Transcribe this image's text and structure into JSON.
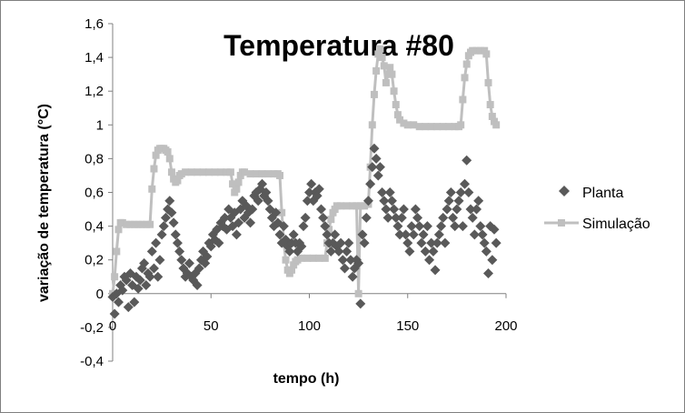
{
  "colors": {
    "planta": "#595959",
    "simulacao": "#bfbfbf",
    "axis": "#808080",
    "frame": "#7f7f7f"
  },
  "chart_data": {
    "type": "scatter",
    "title": "Temperatura #80",
    "xlabel": "tempo (h)",
    "ylabel": "variação de temperatura (°C)",
    "xlim": [
      0,
      200
    ],
    "ylim": [
      -0.4,
      1.6
    ],
    "x_ticks": [
      0,
      50,
      100,
      150,
      200
    ],
    "x_tick_labels": [
      "0",
      "50",
      "100",
      "150",
      "200"
    ],
    "y_ticks": [
      -0.4,
      -0.2,
      0,
      0.2,
      0.4,
      0.6,
      0.8,
      1.0,
      1.2,
      1.4,
      1.6
    ],
    "y_tick_labels": [
      "-0,4",
      "-0,2",
      "0",
      "0,2",
      "0,4",
      "0,6",
      "0,8",
      "1",
      "1,2",
      "1,4",
      "1,6"
    ],
    "grid": false,
    "legend_position": "right",
    "series": [
      {
        "name": "Planta",
        "marker": "diamond",
        "points": [
          [
            0,
            -0.02
          ],
          [
            1,
            -0.12
          ],
          [
            2,
            0.0
          ],
          [
            3,
            -0.05
          ],
          [
            4,
            0.05
          ],
          [
            5,
            0.02
          ],
          [
            6,
            0.1
          ],
          [
            7,
            0.08
          ],
          [
            8,
            -0.08
          ],
          [
            9,
            0.12
          ],
          [
            10,
            0.05
          ],
          [
            11,
            -0.05
          ],
          [
            12,
            0.1
          ],
          [
            13,
            0.03
          ],
          [
            14,
            0.08
          ],
          [
            15,
            0.15
          ],
          [
            16,
            0.18
          ],
          [
            17,
            0.05
          ],
          [
            18,
            0.12
          ],
          [
            19,
            0.1
          ],
          [
            20,
            0.25
          ],
          [
            21,
            0.15
          ],
          [
            22,
            0.3
          ],
          [
            23,
            0.1
          ],
          [
            24,
            0.2
          ],
          [
            25,
            0.35
          ],
          [
            26,
            0.4
          ],
          [
            27,
            0.45
          ],
          [
            28,
            0.5
          ],
          [
            29,
            0.55
          ],
          [
            30,
            0.48
          ],
          [
            31,
            0.42
          ],
          [
            32,
            0.35
          ],
          [
            33,
            0.3
          ],
          [
            34,
            0.25
          ],
          [
            35,
            0.2
          ],
          [
            36,
            0.15
          ],
          [
            37,
            0.1
          ],
          [
            38,
            0.12
          ],
          [
            39,
            0.18
          ],
          [
            40,
            0.1
          ],
          [
            41,
            0.08
          ],
          [
            42,
            0.12
          ],
          [
            43,
            0.05
          ],
          [
            44,
            0.15
          ],
          [
            45,
            0.2
          ],
          [
            46,
            0.25
          ],
          [
            47,
            0.18
          ],
          [
            48,
            0.22
          ],
          [
            49,
            0.3
          ],
          [
            50,
            0.28
          ],
          [
            51,
            0.35
          ],
          [
            52,
            0.32
          ],
          [
            53,
            0.38
          ],
          [
            54,
            0.3
          ],
          [
            55,
            0.42
          ],
          [
            56,
            0.4
          ],
          [
            57,
            0.45
          ],
          [
            58,
            0.38
          ],
          [
            59,
            0.5
          ],
          [
            60,
            0.45
          ],
          [
            61,
            0.4
          ],
          [
            62,
            0.48
          ],
          [
            63,
            0.35
          ],
          [
            64,
            0.42
          ],
          [
            65,
            0.5
          ],
          [
            66,
            0.55
          ],
          [
            67,
            0.45
          ],
          [
            68,
            0.52
          ],
          [
            69,
            0.48
          ],
          [
            70,
            0.42
          ],
          [
            71,
            0.5
          ],
          [
            72,
            0.58
          ],
          [
            73,
            0.6
          ],
          [
            74,
            0.55
          ],
          [
            75,
            0.62
          ],
          [
            76,
            0.65
          ],
          [
            77,
            0.58
          ],
          [
            78,
            0.6
          ],
          [
            79,
            0.55
          ],
          [
            80,
            0.5
          ],
          [
            81,
            0.45
          ],
          [
            82,
            0.4
          ],
          [
            83,
            0.48
          ],
          [
            84,
            0.42
          ],
          [
            85,
            0.35
          ],
          [
            86,
            0.3
          ],
          [
            87,
            0.4
          ],
          [
            88,
            0.32
          ],
          [
            89,
            0.28
          ],
          [
            90,
            0.25
          ],
          [
            91,
            0.3
          ],
          [
            92,
            0.35
          ],
          [
            93,
            0.3
          ],
          [
            94,
            0.25
          ],
          [
            95,
            0.3
          ],
          [
            96,
            0.28
          ],
          [
            97,
            0.4
          ],
          [
            98,
            0.45
          ],
          [
            99,
            0.55
          ],
          [
            100,
            0.6
          ],
          [
            101,
            0.65
          ],
          [
            102,
            0.55
          ],
          [
            103,
            0.6
          ],
          [
            104,
            0.58
          ],
          [
            105,
            0.62
          ],
          [
            106,
            0.5
          ],
          [
            107,
            0.45
          ],
          [
            108,
            0.4
          ],
          [
            109,
            0.35
          ],
          [
            110,
            0.3
          ],
          [
            111,
            0.25
          ],
          [
            112,
            0.3
          ],
          [
            113,
            0.35
          ],
          [
            114,
            0.28
          ],
          [
            115,
            0.25
          ],
          [
            116,
            0.3
          ],
          [
            117,
            0.2
          ],
          [
            118,
            0.15
          ],
          [
            119,
            0.25
          ],
          [
            120,
            0.3
          ],
          [
            121,
            0.2
          ],
          [
            122,
            0.1
          ],
          [
            123,
            0.15
          ],
          [
            124,
            0.2
          ],
          [
            125,
            0.18
          ],
          [
            126,
            -0.06
          ],
          [
            127,
            0.35
          ],
          [
            128,
            0.3
          ],
          [
            129,
            0.45
          ],
          [
            130,
            0.55
          ],
          [
            131,
            0.65
          ],
          [
            132,
            0.75
          ],
          [
            133,
            0.86
          ],
          [
            134,
            0.8
          ],
          [
            135,
            0.7
          ],
          [
            136,
            0.75
          ],
          [
            137,
            0.6
          ],
          [
            138,
            0.55
          ],
          [
            139,
            0.5
          ],
          [
            140,
            0.45
          ],
          [
            141,
            0.6
          ],
          [
            142,
            0.55
          ],
          [
            143,
            0.5
          ],
          [
            144,
            0.45
          ],
          [
            145,
            0.4
          ],
          [
            146,
            0.35
          ],
          [
            147,
            0.45
          ],
          [
            148,
            0.5
          ],
          [
            149,
            0.35
          ],
          [
            150,
            0.3
          ],
          [
            151,
            0.25
          ],
          [
            152,
            0.4
          ],
          [
            153,
            0.35
          ],
          [
            154,
            0.5
          ],
          [
            155,
            0.45
          ],
          [
            156,
            0.4
          ],
          [
            157,
            0.3
          ],
          [
            158,
            0.35
          ],
          [
            159,
            0.25
          ],
          [
            160,
            0.4
          ],
          [
            161,
            0.2
          ],
          [
            162,
            0.3
          ],
          [
            163,
            0.25
          ],
          [
            164,
            0.14
          ],
          [
            165,
            0.3
          ],
          [
            166,
            0.35
          ],
          [
            167,
            0.4
          ],
          [
            168,
            0.45
          ],
          [
            169,
            0.3
          ],
          [
            170,
            0.5
          ],
          [
            171,
            0.55
          ],
          [
            172,
            0.6
          ],
          [
            173,
            0.45
          ],
          [
            174,
            0.4
          ],
          [
            175,
            0.5
          ],
          [
            176,
            0.55
          ],
          [
            177,
            0.6
          ],
          [
            178,
            0.4
          ],
          [
            179,
            0.65
          ],
          [
            180,
            0.79
          ],
          [
            181,
            0.6
          ],
          [
            182,
            0.5
          ],
          [
            183,
            0.45
          ],
          [
            184,
            0.35
          ],
          [
            185,
            0.5
          ],
          [
            186,
            0.55
          ],
          [
            187,
            0.4
          ],
          [
            188,
            0.35
          ],
          [
            189,
            0.3
          ],
          [
            190,
            0.25
          ],
          [
            191,
            0.12
          ],
          [
            192,
            0.4
          ],
          [
            193,
            0.2
          ],
          [
            194,
            0.38
          ],
          [
            195,
            0.3
          ]
        ]
      },
      {
        "name": "Simulação",
        "marker": "square",
        "points": [
          [
            0,
            0.0
          ],
          [
            1,
            0.1
          ],
          [
            2,
            0.25
          ],
          [
            3,
            0.38
          ],
          [
            4,
            0.42
          ],
          [
            5,
            0.42
          ],
          [
            7,
            0.41
          ],
          [
            9,
            0.41
          ],
          [
            11,
            0.41
          ],
          [
            13,
            0.41
          ],
          [
            15,
            0.41
          ],
          [
            17,
            0.41
          ],
          [
            19,
            0.41
          ],
          [
            20,
            0.62
          ],
          [
            21,
            0.74
          ],
          [
            22,
            0.82
          ],
          [
            23,
            0.85
          ],
          [
            24,
            0.86
          ],
          [
            25,
            0.86
          ],
          [
            26,
            0.86
          ],
          [
            27,
            0.85
          ],
          [
            28,
            0.84
          ],
          [
            29,
            0.8
          ],
          [
            30,
            0.72
          ],
          [
            31,
            0.68
          ],
          [
            32,
            0.66
          ],
          [
            33,
            0.67
          ],
          [
            34,
            0.7
          ],
          [
            35,
            0.71
          ],
          [
            37,
            0.72
          ],
          [
            40,
            0.72
          ],
          [
            43,
            0.72
          ],
          [
            46,
            0.72
          ],
          [
            49,
            0.72
          ],
          [
            52,
            0.72
          ],
          [
            55,
            0.72
          ],
          [
            58,
            0.72
          ],
          [
            60,
            0.72
          ],
          [
            61,
            0.65
          ],
          [
            62,
            0.6
          ],
          [
            63,
            0.62
          ],
          [
            64,
            0.66
          ],
          [
            65,
            0.7
          ],
          [
            66,
            0.72
          ],
          [
            67,
            0.72
          ],
          [
            70,
            0.71
          ],
          [
            73,
            0.71
          ],
          [
            76,
            0.71
          ],
          [
            79,
            0.71
          ],
          [
            82,
            0.71
          ],
          [
            84,
            0.71
          ],
          [
            85,
            0.7
          ],
          [
            86,
            0.48
          ],
          [
            87,
            0.3
          ],
          [
            88,
            0.2
          ],
          [
            89,
            0.14
          ],
          [
            90,
            0.12
          ],
          [
            91,
            0.14
          ],
          [
            92,
            0.17
          ],
          [
            93,
            0.19
          ],
          [
            94,
            0.2
          ],
          [
            96,
            0.21
          ],
          [
            99,
            0.21
          ],
          [
            102,
            0.21
          ],
          [
            105,
            0.21
          ],
          [
            108,
            0.21
          ],
          [
            109,
            0.3
          ],
          [
            110,
            0.38
          ],
          [
            111,
            0.44
          ],
          [
            112,
            0.48
          ],
          [
            113,
            0.5
          ],
          [
            114,
            0.52
          ],
          [
            116,
            0.52
          ],
          [
            119,
            0.52
          ],
          [
            122,
            0.52
          ],
          [
            124,
            0.52
          ],
          [
            125,
            0.0
          ],
          [
            126,
            0.52
          ],
          [
            128,
            0.52
          ],
          [
            130,
            0.53
          ],
          [
            131,
            0.75
          ],
          [
            132,
            1.0
          ],
          [
            133,
            1.18
          ],
          [
            134,
            1.32
          ],
          [
            135,
            1.42
          ],
          [
            136,
            1.45
          ],
          [
            137,
            1.4
          ],
          [
            138,
            1.35
          ],
          [
            139,
            1.25
          ],
          [
            140,
            1.3
          ],
          [
            141,
            1.34
          ],
          [
            142,
            1.3
          ],
          [
            143,
            1.2
          ],
          [
            144,
            1.12
          ],
          [
            145,
            1.06
          ],
          [
            146,
            1.03
          ],
          [
            148,
            1.01
          ],
          [
            150,
            1.0
          ],
          [
            153,
            1.0
          ],
          [
            156,
            0.99
          ],
          [
            159,
            0.99
          ],
          [
            162,
            0.99
          ],
          [
            165,
            0.99
          ],
          [
            168,
            0.99
          ],
          [
            171,
            0.99
          ],
          [
            174,
            0.99
          ],
          [
            176,
            0.99
          ],
          [
            177,
            1.0
          ],
          [
            178,
            1.15
          ],
          [
            179,
            1.28
          ],
          [
            180,
            1.36
          ],
          [
            181,
            1.41
          ],
          [
            182,
            1.43
          ],
          [
            183,
            1.44
          ],
          [
            185,
            1.44
          ],
          [
            187,
            1.44
          ],
          [
            189,
            1.44
          ],
          [
            190,
            1.42
          ],
          [
            191,
            1.25
          ],
          [
            192,
            1.12
          ],
          [
            193,
            1.05
          ],
          [
            194,
            1.02
          ],
          [
            195,
            1.0
          ]
        ]
      }
    ]
  }
}
